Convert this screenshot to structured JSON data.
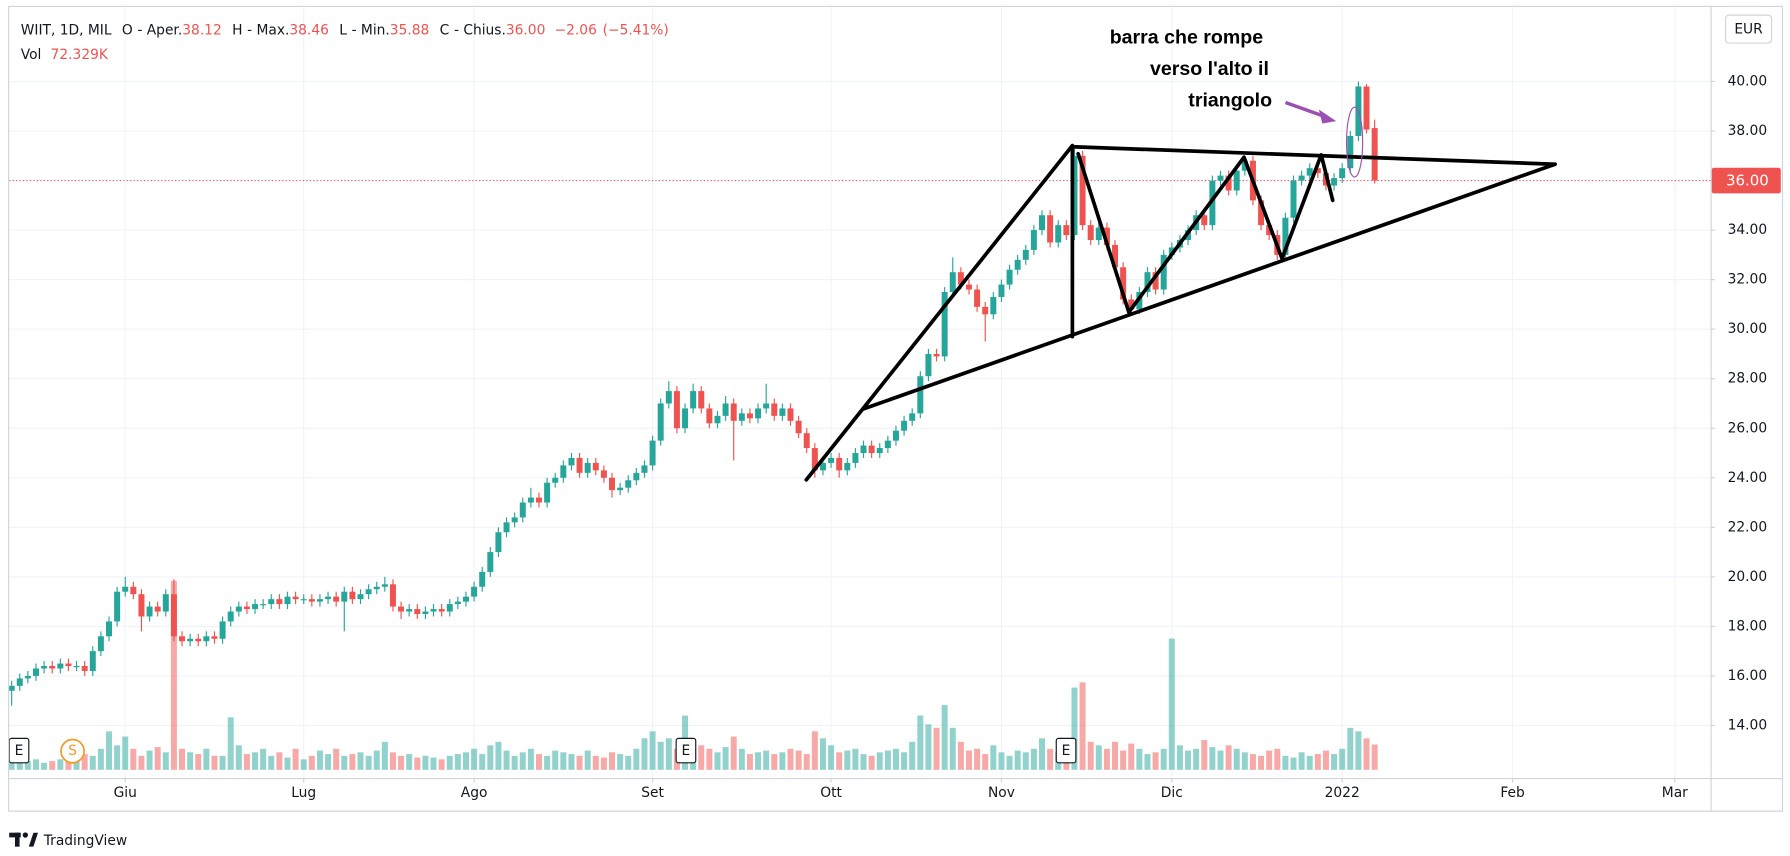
{
  "chart_data": {
    "type": "candlestick",
    "header": {
      "symbol": "WIIT, 1D, MIL",
      "items": [
        {
          "key": "O",
          "name": "- Aper.",
          "value": 38.12
        },
        {
          "key": "H",
          "name": "- Max.",
          "value": 38.46
        },
        {
          "key": "L",
          "name": "- Min.",
          "value": 35.88
        },
        {
          "key": "C",
          "name": "- Chius.",
          "value": {
            "value": 36,
            "label": "36.00"
          }
        }
      ],
      "change": {
        "value": -2.06,
        "label": "−2.06"
      },
      "change_pct": {
        "value": -5.41,
        "label": "(−5.41%)"
      },
      "volume_name": "Vol",
      "volume": {
        "value": 72329,
        "label": "72.329K"
      }
    },
    "currency": "EUR",
    "up_color": "#26a69a",
    "down_color": "#ef5350",
    "xlim": [
      -0.3,
      209.4
    ],
    "xticks": [
      {
        "value": 14,
        "label": "Giu"
      },
      {
        "value": 36,
        "label": "Lug"
      },
      {
        "value": 57,
        "label": "Ago"
      },
      {
        "value": 79,
        "label": "Set"
      },
      {
        "value": 101,
        "label": "Ott"
      },
      {
        "value": 122,
        "label": "Nov"
      },
      {
        "value": 143,
        "label": "Dic"
      },
      {
        "value": 164,
        "label": "2022"
      },
      {
        "value": 185,
        "label": "Feb"
      },
      {
        "value": 205,
        "label": "Mar"
      }
    ],
    "ylim": [
      11.88,
      43.29
    ],
    "yticks": [
      {
        "value": 14,
        "label": "14.00"
      },
      {
        "value": 16,
        "label": "16.00"
      },
      {
        "value": 18,
        "label": "18.00"
      },
      {
        "value": 20,
        "label": "20.00"
      },
      {
        "value": 22,
        "label": "22.00"
      },
      {
        "value": 24,
        "label": "24.00"
      },
      {
        "value": 26,
        "label": "26.00"
      },
      {
        "value": 28,
        "label": "28.00"
      },
      {
        "value": 30,
        "label": "30.00"
      },
      {
        "value": 32,
        "label": "32.00"
      },
      {
        "value": 34,
        "label": "34.00"
      },
      {
        "value": 36,
        "label": "36.00"
      },
      {
        "value": 38,
        "label": "38.00"
      },
      {
        "value": 40,
        "label": "40.00"
      }
    ],
    "volume_ylim": [
      0,
      2200000
    ],
    "price_line": {
      "value": 36,
      "label": "36.00"
    },
    "grid": true,
    "annotations": [
      "barra che rompe",
      "verso l'alto il",
      "triangolo"
    ],
    "events": [
      "E",
      "S",
      "E",
      "E"
    ],
    "series": [
      {
        "open": [
          15.4,
          15.6,
          15.9,
          16.0,
          16.3,
          16.4,
          16.3,
          16.5,
          16.4,
          16.4,
          16.2,
          17.0,
          17.6,
          18.2,
          19.4,
          19.6,
          19.3,
          18.4,
          18.8,
          18.6,
          19.3,
          17.6,
          17.4,
          17.5,
          17.4,
          17.6,
          17.5,
          18.2,
          18.6,
          18.8,
          18.7,
          18.9,
          18.9,
          19.1,
          18.9,
          19.2,
          19.1,
          19.1,
          19.0,
          19.1,
          19.2,
          19.0,
          19.4,
          19.1,
          19.3,
          19.5,
          19.6,
          19.7,
          18.8,
          18.6,
          18.7,
          18.5,
          18.6,
          18.7,
          18.6,
          18.9,
          19.0,
          19.2,
          19.6,
          20.2,
          21.0,
          21.8,
          22.2,
          22.4,
          23.0,
          23.2,
          23.0,
          23.8,
          24.0,
          24.5,
          24.8,
          24.2,
          24.6,
          24.3,
          24.0,
          23.5,
          23.6,
          23.9,
          24.2,
          24.5,
          25.5,
          27.0,
          27.5,
          26.0,
          26.8,
          27.5,
          26.8,
          26.2,
          26.5,
          27.0,
          26.3,
          26.6,
          26.4,
          26.8,
          27.0,
          26.5,
          26.8,
          26.3,
          25.8,
          25.2,
          24.3,
          24.6,
          24.8,
          24.3,
          24.6,
          25.0,
          25.3,
          25.0,
          25.2,
          25.5,
          25.9,
          26.3,
          26.6,
          28.1,
          29.0,
          28.9,
          31.5,
          32.3,
          31.8,
          31.6,
          30.9,
          30.6,
          31.3,
          31.8,
          32.4,
          32.8,
          33.2,
          34.0,
          34.6,
          33.5,
          34.2,
          33.8,
          37.0,
          34.2,
          33.6,
          34.1,
          33.4,
          32.5,
          31.2,
          30.8,
          31.5,
          32.3,
          31.6,
          33.0,
          33.3,
          33.6,
          34.0,
          34.6,
          34.2,
          36.0,
          36.2,
          35.6,
          36.4,
          36.8,
          35.2,
          34.2,
          33.8,
          33.0,
          34.5,
          36.0,
          36.2,
          36.5,
          36.3,
          35.8,
          36.1,
          36.5,
          37.8,
          39.8,
          38.12
        ],
        "high": [
          15.8,
          16.1,
          16.2,
          16.5,
          16.6,
          16.6,
          16.7,
          16.7,
          16.6,
          16.6,
          17.2,
          17.8,
          18.4,
          19.6,
          20.0,
          19.8,
          19.5,
          19.0,
          19.0,
          19.5,
          19.9,
          17.8,
          17.7,
          17.7,
          17.8,
          17.8,
          18.4,
          18.8,
          19.0,
          19.0,
          19.1,
          19.1,
          19.3,
          19.3,
          19.4,
          19.4,
          19.3,
          19.3,
          19.3,
          19.4,
          19.4,
          19.6,
          19.6,
          19.5,
          19.7,
          19.8,
          20.0,
          19.9,
          19.0,
          18.9,
          18.9,
          18.8,
          18.9,
          18.9,
          19.1,
          19.2,
          19.4,
          19.8,
          20.4,
          21.2,
          22.0,
          22.4,
          22.6,
          23.2,
          23.6,
          23.4,
          24.0,
          24.2,
          24.7,
          25.0,
          25.0,
          24.8,
          24.8,
          24.5,
          24.2,
          23.8,
          24.1,
          24.4,
          24.7,
          25.7,
          27.2,
          27.9,
          27.7,
          27.0,
          27.8,
          27.7,
          27.0,
          26.7,
          27.3,
          27.2,
          26.8,
          26.8,
          27.0,
          27.8,
          27.2,
          27.0,
          27.0,
          26.5,
          26.0,
          25.4,
          24.8,
          25.0,
          25.0,
          24.8,
          25.2,
          25.5,
          25.5,
          25.4,
          25.7,
          26.1,
          26.5,
          26.8,
          28.3,
          29.2,
          29.2,
          31.7,
          32.9,
          32.5,
          32.0,
          31.8,
          31.1,
          31.5,
          32.0,
          32.6,
          33.0,
          33.4,
          34.2,
          34.8,
          34.8,
          34.4,
          34.4,
          37.3,
          37.2,
          34.4,
          34.3,
          34.3,
          33.6,
          32.7,
          31.4,
          31.7,
          32.5,
          32.5,
          33.2,
          33.5,
          33.8,
          34.2,
          34.8,
          34.8,
          36.2,
          36.4,
          36.4,
          36.6,
          37.0,
          37.0,
          35.4,
          34.4,
          34.0,
          34.7,
          36.2,
          36.4,
          36.7,
          36.7,
          36.5,
          36.3,
          36.7,
          38.0,
          40.0,
          39.9,
          38.46
        ],
        "low": [
          14.8,
          15.4,
          15.7,
          15.8,
          16.1,
          16.1,
          16.1,
          16.2,
          16.2,
          16.0,
          16.0,
          16.8,
          17.4,
          18.0,
          19.2,
          19.1,
          17.8,
          18.2,
          18.4,
          18.4,
          17.4,
          17.2,
          17.2,
          17.2,
          17.2,
          17.3,
          17.3,
          18.0,
          18.4,
          18.5,
          18.5,
          18.7,
          18.7,
          18.7,
          18.7,
          18.9,
          18.9,
          18.8,
          18.8,
          18.9,
          18.8,
          17.8,
          18.9,
          18.9,
          19.1,
          19.3,
          19.4,
          18.6,
          18.3,
          18.4,
          18.3,
          18.3,
          18.4,
          18.4,
          18.4,
          18.7,
          18.8,
          19.0,
          19.4,
          20.0,
          20.8,
          21.6,
          22.0,
          22.2,
          22.8,
          22.8,
          22.8,
          23.6,
          23.8,
          24.3,
          24.0,
          24.0,
          24.1,
          23.8,
          23.2,
          23.3,
          23.4,
          23.7,
          24.0,
          24.3,
          25.3,
          26.8,
          25.8,
          25.8,
          26.6,
          26.6,
          26.0,
          26.0,
          26.3,
          24.7,
          26.1,
          26.2,
          26.2,
          26.6,
          26.3,
          26.3,
          26.1,
          25.6,
          25.0,
          24.0,
          24.1,
          24.4,
          24.0,
          24.1,
          24.4,
          24.8,
          24.8,
          24.8,
          25.0,
          25.3,
          25.7,
          26.1,
          26.4,
          27.9,
          28.7,
          28.7,
          31.3,
          31.6,
          31.4,
          30.7,
          29.5,
          30.4,
          31.1,
          31.6,
          32.2,
          32.6,
          33.0,
          33.8,
          33.3,
          33.3,
          33.6,
          33.6,
          34.0,
          33.4,
          33.4,
          33.2,
          32.3,
          31.0,
          30.6,
          30.6,
          31.3,
          31.4,
          31.4,
          32.8,
          33.1,
          33.4,
          33.8,
          34.0,
          34.0,
          35.8,
          35.4,
          35.4,
          36.2,
          35.0,
          34.0,
          33.6,
          32.8,
          32.8,
          34.3,
          35.8,
          36.0,
          36.1,
          35.6,
          35.6,
          35.9,
          36.3,
          37.6,
          37.9,
          35.88
        ],
        "close": [
          15.6,
          15.9,
          16.0,
          16.3,
          16.4,
          16.3,
          16.5,
          16.4,
          16.4,
          16.2,
          17.0,
          17.6,
          18.2,
          19.4,
          19.6,
          19.3,
          18.4,
          18.8,
          18.6,
          19.3,
          17.6,
          17.4,
          17.5,
          17.4,
          17.6,
          17.5,
          18.2,
          18.6,
          18.8,
          18.7,
          18.9,
          18.9,
          19.1,
          18.9,
          19.2,
          19.1,
          19.1,
          19.0,
          19.1,
          19.2,
          19.0,
          19.4,
          19.1,
          19.3,
          19.5,
          19.6,
          19.7,
          18.8,
          18.6,
          18.7,
          18.5,
          18.6,
          18.7,
          18.6,
          18.9,
          19.0,
          19.2,
          19.6,
          20.2,
          21.0,
          21.8,
          22.2,
          22.4,
          23.0,
          23.2,
          23.0,
          23.8,
          24.0,
          24.5,
          24.8,
          24.2,
          24.6,
          24.3,
          24.0,
          23.5,
          23.6,
          23.9,
          24.2,
          24.5,
          25.5,
          27.0,
          27.5,
          26.0,
          26.8,
          27.5,
          26.8,
          26.2,
          26.5,
          27.0,
          26.3,
          26.6,
          26.4,
          26.8,
          27.0,
          26.5,
          26.8,
          26.3,
          25.8,
          25.2,
          24.3,
          24.6,
          24.8,
          24.3,
          24.6,
          25.0,
          25.3,
          25.0,
          25.2,
          25.5,
          25.9,
          26.3,
          26.6,
          28.1,
          29.0,
          28.9,
          31.5,
          32.3,
          31.8,
          31.6,
          30.9,
          30.6,
          31.3,
          31.8,
          32.4,
          32.8,
          33.2,
          34.0,
          34.6,
          33.5,
          34.2,
          33.8,
          37.0,
          34.2,
          33.6,
          34.1,
          33.4,
          32.5,
          31.2,
          30.8,
          31.5,
          32.3,
          31.6,
          33.0,
          33.3,
          33.6,
          34.0,
          34.6,
          34.2,
          36.0,
          36.2,
          35.6,
          36.4,
          36.8,
          35.2,
          34.2,
          33.8,
          33.0,
          34.5,
          36.0,
          36.2,
          36.5,
          36.3,
          35.8,
          36.1,
          36.5,
          37.8,
          39.8,
          38.06,
          36.0
        ],
        "volume": [
          40000,
          30000,
          25000,
          30000,
          20000,
          25000,
          30000,
          35000,
          30000,
          45000,
          40000,
          60000,
          110000,
          70000,
          95000,
          60000,
          40000,
          55000,
          65000,
          50000,
          540000,
          60000,
          50000,
          45000,
          60000,
          40000,
          40000,
          150000,
          70000,
          45000,
          50000,
          60000,
          40000,
          50000,
          35000,
          60000,
          30000,
          40000,
          55000,
          45000,
          60000,
          40000,
          45000,
          50000,
          40000,
          55000,
          80000,
          50000,
          40000,
          45000,
          35000,
          40000,
          35000,
          30000,
          40000,
          45000,
          50000,
          60000,
          45000,
          70000,
          80000,
          55000,
          40000,
          50000,
          60000,
          45000,
          40000,
          55000,
          50000,
          45000,
          40000,
          55000,
          40000,
          35000,
          50000,
          45000,
          40000,
          60000,
          90000,
          110000,
          80000,
          90000,
          60000,
          155000,
          80000,
          70000,
          60000,
          50000,
          65000,
          95000,
          60000,
          45000,
          50000,
          55000,
          45000,
          50000,
          60000,
          55000,
          45000,
          110000,
          90000,
          70000,
          50000,
          55000,
          60000,
          45000,
          40000,
          50000,
          55000,
          60000,
          50000,
          80000,
          155000,
          130000,
          120000,
          185000,
          120000,
          80000,
          55000,
          60000,
          45000,
          70000,
          50000,
          40000,
          55000,
          50000,
          60000,
          90000,
          60000,
          50000,
          85000,
          235000,
          250000,
          80000,
          70000,
          60000,
          80000,
          55000,
          75000,
          60000,
          45000,
          50000,
          60000,
          375000,
          70000,
          55000,
          60000,
          85000,
          65000,
          55000,
          70000,
          60000,
          50000,
          45000,
          40000,
          55000,
          60000,
          40000,
          35000,
          50000,
          40000,
          45000,
          55000,
          45000,
          60000,
          120000,
          110000,
          90000,
          72329
        ]
      }
    ]
  },
  "footer": {
    "brand": "TradingView"
  }
}
